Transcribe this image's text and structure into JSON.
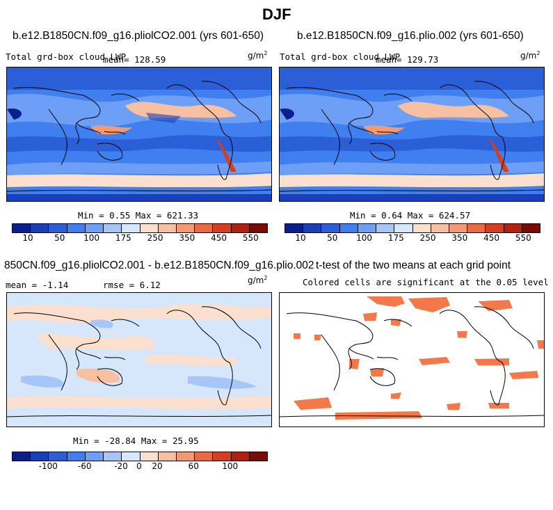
{
  "main_title": "DJF",
  "panels": {
    "p1": {
      "title": "b.e12.B1850CN.f09_g16.pliolCO2.001 (yrs 601-650)",
      "variable": "Total grd-box cloud LWP",
      "mean_text": "mean= 128.59",
      "units": "g/m",
      "units_exp": "2",
      "minmax": "Min =   0.55 Max = 621.33"
    },
    "p2": {
      "title": "b.e12.B1850CN.f09_g16.plio.002 (yrs 601-650)",
      "variable": "Total grd-box cloud LWP",
      "mean_text": "mean= 129.73",
      "units": "g/m",
      "units_exp": "2",
      "minmax": "Min =   0.64 Max = 624.57"
    },
    "p3": {
      "title": "850CN.f09_g16.pliolCO2.001 - b.e12.B1850CN.f09_g16.plio.002",
      "mean_label": "mean =",
      "mean_value": "-1.14",
      "rmse_label": "rmse =",
      "rmse_value": "6.12",
      "units": "g/m",
      "units_exp": "2",
      "minmax": "Min = -28.84 Max =  25.95"
    },
    "p4": {
      "title": "t-test of the two means at each grid point",
      "subtitle": "Colored cells are significant at the 0.05 level"
    }
  },
  "colorbars": {
    "lwp": {
      "colors": [
        "#0a1e8c",
        "#1a3fb8",
        "#2b5fd8",
        "#3f7fef",
        "#6e9ff6",
        "#a6c6fa",
        "#d6e6fb",
        "#fbe0cf",
        "#f7c0a2",
        "#f39a72",
        "#e96b44",
        "#d33f1f",
        "#b2200f",
        "#7a0a05"
      ],
      "ticks": [
        "10",
        "50",
        "100",
        "175",
        "250",
        "350",
        "450",
        "550"
      ]
    },
    "diff": {
      "colors": [
        "#0a1e8c",
        "#1a3fb8",
        "#2b5fd8",
        "#3f7fef",
        "#6e9ff6",
        "#a6c6fa",
        "#d6e6fb",
        "#fbe0cf",
        "#f7c0a2",
        "#f39a72",
        "#e96b44",
        "#d33f1f",
        "#b2200f",
        "#7a0a05"
      ],
      "ticks": [
        "-100",
        "-60",
        "-20",
        "0",
        "20",
        "60",
        "100"
      ]
    }
  }
}
